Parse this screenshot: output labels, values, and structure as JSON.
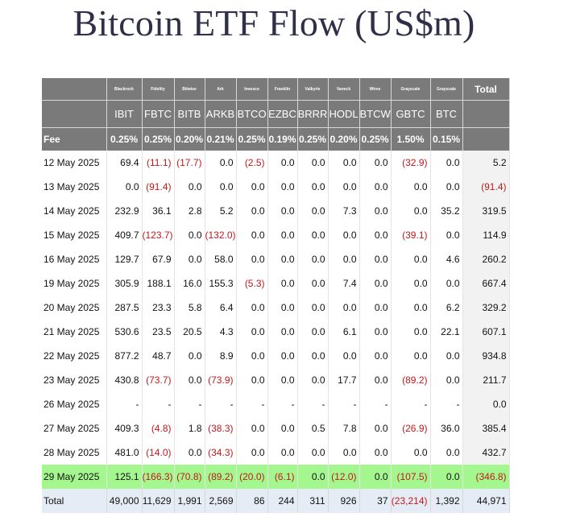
{
  "title": "Bitcoin ETF Flow (US$m)",
  "chart_data": {
    "type": "table",
    "title": "Bitcoin ETF Flow (US$m)",
    "issuers": [
      "Blackrock",
      "Fidelity",
      "Bitwise",
      "Ark",
      "Invesco",
      "Franklin",
      "Valkyrie",
      "Vaneck",
      "Wtree",
      "Grayscale",
      "Grayscale"
    ],
    "total_header": "Total",
    "tickers": [
      "IBIT",
      "FBTC",
      "BITB",
      "ARKB",
      "BTCO",
      "EZBC",
      "BRRR",
      "HODL",
      "BTCW",
      "GBTC",
      "BTC"
    ],
    "fee_label": "Fee",
    "fees": [
      "0.25%",
      "0.25%",
      "0.20%",
      "0.21%",
      "0.25%",
      "0.19%",
      "0.25%",
      "0.20%",
      "0.25%",
      "1.50%",
      "0.15%"
    ],
    "rows": [
      {
        "date": "12 May 2025",
        "values": [
          "69.4",
          "(11.1)",
          "(17.7)",
          "0.0",
          "(2.5)",
          "0.0",
          "0.0",
          "0.0",
          "0.0",
          "(32.9)",
          "0.0"
        ],
        "total": "5.2"
      },
      {
        "date": "13 May 2025",
        "values": [
          "0.0",
          "(91.4)",
          "0.0",
          "0.0",
          "0.0",
          "0.0",
          "0.0",
          "0.0",
          "0.0",
          "0.0",
          "0.0"
        ],
        "total": "(91.4)"
      },
      {
        "date": "14 May 2025",
        "values": [
          "232.9",
          "36.1",
          "2.8",
          "5.2",
          "0.0",
          "0.0",
          "0.0",
          "7.3",
          "0.0",
          "0.0",
          "35.2"
        ],
        "total": "319.5"
      },
      {
        "date": "15 May 2025",
        "values": [
          "409.7",
          "(123.7)",
          "0.0",
          "(132.0)",
          "0.0",
          "0.0",
          "0.0",
          "0.0",
          "0.0",
          "(39.1)",
          "0.0"
        ],
        "total": "114.9"
      },
      {
        "date": "16 May 2025",
        "values": [
          "129.7",
          "67.9",
          "0.0",
          "58.0",
          "0.0",
          "0.0",
          "0.0",
          "0.0",
          "0.0",
          "0.0",
          "4.6"
        ],
        "total": "260.2"
      },
      {
        "date": "19 May 2025",
        "values": [
          "305.9",
          "188.1",
          "16.0",
          "155.3",
          "(5.3)",
          "0.0",
          "0.0",
          "7.4",
          "0.0",
          "0.0",
          "0.0"
        ],
        "total": "667.4"
      },
      {
        "date": "20 May 2025",
        "values": [
          "287.5",
          "23.3",
          "5.8",
          "6.4",
          "0.0",
          "0.0",
          "0.0",
          "0.0",
          "0.0",
          "0.0",
          "6.2"
        ],
        "total": "329.2"
      },
      {
        "date": "21 May 2025",
        "values": [
          "530.6",
          "23.5",
          "20.5",
          "4.3",
          "0.0",
          "0.0",
          "0.0",
          "6.1",
          "0.0",
          "0.0",
          "22.1"
        ],
        "total": "607.1"
      },
      {
        "date": "22 May 2025",
        "values": [
          "877.2",
          "48.7",
          "0.0",
          "8.9",
          "0.0",
          "0.0",
          "0.0",
          "0.0",
          "0.0",
          "0.0",
          "0.0"
        ],
        "total": "934.8"
      },
      {
        "date": "23 May 2025",
        "values": [
          "430.8",
          "(73.7)",
          "0.0",
          "(73.9)",
          "0.0",
          "0.0",
          "0.0",
          "17.7",
          "0.0",
          "(89.2)",
          "0.0"
        ],
        "total": "211.7"
      },
      {
        "date": "26 May 2025",
        "values": [
          "-",
          "-",
          "-",
          "-",
          "-",
          "-",
          "-",
          "-",
          "-",
          "-",
          "-"
        ],
        "total": "0.0"
      },
      {
        "date": "27 May 2025",
        "values": [
          "409.3",
          "(4.8)",
          "1.8",
          "(38.3)",
          "0.0",
          "0.0",
          "0.5",
          "7.8",
          "0.0",
          "(26.9)",
          "36.0"
        ],
        "total": "385.4"
      },
      {
        "date": "28 May 2025",
        "values": [
          "481.0",
          "(14.0)",
          "0.0",
          "(34.3)",
          "0.0",
          "0.0",
          "0.0",
          "0.0",
          "0.0",
          "0.0",
          "0.0"
        ],
        "total": "432.7"
      },
      {
        "date": "29 May 2025",
        "values": [
          "125.1",
          "(166.3)",
          "(70.8)",
          "(89.2)",
          "(20.0)",
          "(6.1)",
          "0.0",
          "(12.0)",
          "0.0",
          "(107.5)",
          "0.0"
        ],
        "total": "(346.8)",
        "highlight": true
      }
    ],
    "totals_label": "Total",
    "totals": [
      "49,000",
      "11,629",
      "1,991",
      "2,569",
      "86",
      "244",
      "311",
      "926",
      "37",
      "(23,214)",
      "1,392"
    ],
    "grand_total": "44,971"
  },
  "colors": {
    "header_bg": "#7a7a7a",
    "negative": "#c0191c",
    "highlight_row": "#a4f78f",
    "totals_bg": "#e6ecf5",
    "title": "#2f2f47"
  }
}
